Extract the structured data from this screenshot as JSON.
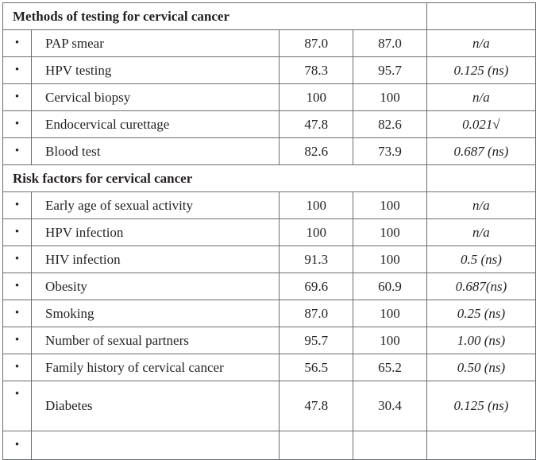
{
  "bullet": "•",
  "sections": [
    {
      "title": "Methods of testing for cervical cancer",
      "rows": [
        {
          "label": "PAP smear",
          "v1": "87.0",
          "v2": "87.0",
          "p": "n/a"
        },
        {
          "label": "HPV testing",
          "v1": "78.3",
          "v2": "95.7",
          "p": "0.125 (ns)"
        },
        {
          "label": "Cervical biopsy",
          "v1": "100",
          "v2": "100",
          "p": "n/a"
        },
        {
          "label": "Endocervical curettage",
          "v1": "47.8",
          "v2": "82.6",
          "p": "0.021√"
        },
        {
          "label": "Blood test",
          "v1": "82.6",
          "v2": "73.9",
          "p": "0.687 (ns)"
        }
      ]
    },
    {
      "title": "Risk factors for cervical cancer",
      "rows": [
        {
          "label": "Early age of sexual activity",
          "v1": "100",
          "v2": "100",
          "p": "n/a"
        },
        {
          "label": "HPV infection",
          "v1": "100",
          "v2": "100",
          "p": "n/a"
        },
        {
          "label": "HIV infection",
          "v1": "91.3",
          "v2": "100",
          "p": "0.5 (ns)"
        },
        {
          "label": "Obesity",
          "v1": "69.6",
          "v2": "60.9",
          "p": "0.687(ns)"
        },
        {
          "label": "Smoking",
          "v1": "87.0",
          "v2": "100",
          "p": "0.25 (ns)"
        },
        {
          "label": "Number of sexual partners",
          "v1": "95.7",
          "v2": "100",
          "p": "1.00 (ns)"
        },
        {
          "label": "Family history of cervical cancer",
          "v1": "56.5",
          "v2": "65.2",
          "p": "0.50 (ns)"
        },
        {
          "label": "Diabetes",
          "v1": "47.8",
          "v2": "30.4",
          "p": "0.125 (ns)"
        }
      ]
    }
  ]
}
